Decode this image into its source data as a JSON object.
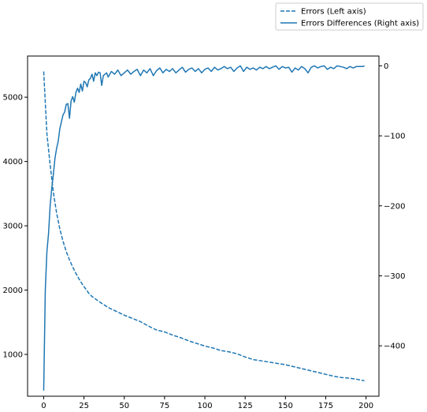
{
  "chart_data": {
    "type": "line",
    "title": "",
    "xlabel": "",
    "ylabel_left": "",
    "ylabel_right": "",
    "xlim": [
      -10,
      208
    ],
    "ylim_left": [
      350,
      5640
    ],
    "ylim_right": [
      -472,
      14
    ],
    "x_ticks": [
      0,
      25,
      50,
      75,
      100,
      125,
      150,
      175,
      200
    ],
    "y_left_ticks": [
      1000,
      2000,
      3000,
      4000,
      5000
    ],
    "y_right_ticks": [
      0,
      -100,
      -200,
      -300,
      -400
    ],
    "y_right_tick_labels": [
      "0",
      "−100",
      "−200",
      "−300",
      "−400"
    ],
    "grid": false,
    "legend_position": "top-right",
    "series": [
      {
        "name": "Errors (Left axis)",
        "axis": "left",
        "style": "dashed",
        "color": "#1f77b4",
        "x": [
          0,
          2,
          4,
          6,
          8,
          10,
          12,
          14,
          16,
          18,
          20,
          22,
          24,
          26,
          28,
          30,
          35,
          40,
          45,
          50,
          55,
          60,
          65,
          70,
          75,
          80,
          85,
          90,
          95,
          100,
          105,
          110,
          115,
          120,
          125,
          130,
          135,
          140,
          145,
          150,
          155,
          160,
          165,
          170,
          175,
          180,
          185,
          190,
          195,
          199
        ],
        "values": [
          5400,
          4430,
          3950,
          3520,
          3200,
          2950,
          2760,
          2600,
          2470,
          2360,
          2260,
          2170,
          2090,
          2020,
          1950,
          1900,
          1810,
          1730,
          1670,
          1610,
          1560,
          1510,
          1440,
          1380,
          1350,
          1300,
          1260,
          1210,
          1170,
          1130,
          1100,
          1060,
          1040,
          1010,
          960,
          920,
          900,
          880,
          860,
          840,
          810,
          780,
          750,
          720,
          690,
          660,
          640,
          630,
          610,
          590
        ]
      },
      {
        "name": "Errors Differences (Right axis)",
        "axis": "right",
        "style": "solid",
        "color": "#1f77b4",
        "x": [
          0,
          1,
          2,
          3,
          4,
          5,
          6,
          7,
          8,
          9,
          10,
          11,
          12,
          13,
          14,
          15,
          16,
          17,
          18,
          19,
          20,
          21,
          22,
          23,
          24,
          25,
          26,
          27,
          28,
          29,
          30,
          31,
          32,
          33,
          34,
          35,
          36,
          37,
          38,
          39,
          40,
          42,
          44,
          46,
          48,
          50,
          52,
          54,
          56,
          58,
          60,
          62,
          64,
          66,
          68,
          70,
          72,
          74,
          76,
          78,
          80,
          82,
          84,
          86,
          88,
          90,
          92,
          94,
          96,
          98,
          100,
          102,
          104,
          106,
          108,
          110,
          112,
          114,
          116,
          118,
          120,
          122,
          124,
          126,
          128,
          130,
          132,
          134,
          136,
          138,
          140,
          142,
          144,
          146,
          148,
          150,
          152,
          154,
          156,
          158,
          160,
          162,
          164,
          166,
          168,
          170,
          172,
          174,
          176,
          178,
          180,
          182,
          184,
          186,
          188,
          190,
          192,
          194,
          196,
          198,
          199
        ],
        "values": [
          -464,
          -320,
          -265,
          -240,
          -200,
          -175,
          -155,
          -132,
          -118,
          -108,
          -90,
          -80,
          -70,
          -66,
          -55,
          -54,
          -75,
          -50,
          -44,
          -52,
          -38,
          -32,
          -38,
          -26,
          -36,
          -22,
          -24,
          -30,
          -20,
          -18,
          -12,
          -22,
          -10,
          -14,
          -9,
          -10,
          -28,
          -14,
          -12,
          -10,
          -16,
          -8,
          -12,
          -6,
          -14,
          -10,
          -6,
          -12,
          -8,
          -5,
          -14,
          -6,
          -10,
          -4,
          -14,
          -7,
          -3,
          -10,
          -5,
          -8,
          -4,
          -10,
          -6,
          -2,
          -9,
          -5,
          -3,
          -8,
          -4,
          -10,
          -5,
          -3,
          -8,
          -2,
          -6,
          -4,
          -1,
          -4,
          -2,
          -8,
          -3,
          0,
          -8,
          -2,
          -5,
          -3,
          -6,
          -2,
          -4,
          -1,
          -4,
          -2,
          0,
          -5,
          -1,
          -3,
          -2,
          -9,
          -3,
          -6,
          -1,
          -4,
          -10,
          -2,
          0,
          -3,
          -1,
          0,
          -5,
          -2,
          -4,
          0,
          -1,
          -2,
          -4,
          -1,
          -3,
          -1,
          -1,
          -1,
          0
        ]
      }
    ]
  }
}
